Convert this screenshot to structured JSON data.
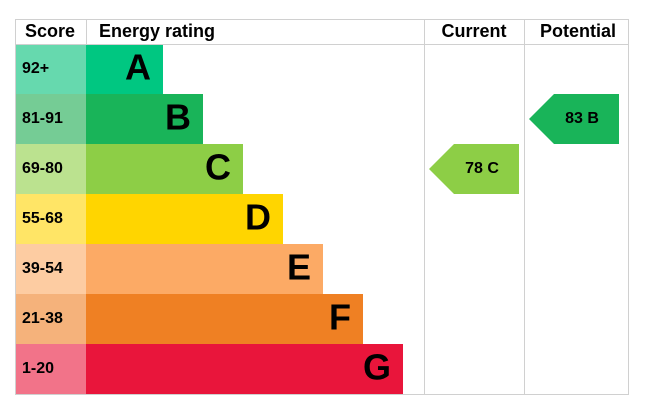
{
  "header": {
    "score": "Score",
    "rating": "Energy rating",
    "current": "Current",
    "potential": "Potential"
  },
  "bands": [
    {
      "score": "92+",
      "letter": "A",
      "color": "#00c781",
      "tint": "#66d9ae"
    },
    {
      "score": "81-91",
      "letter": "B",
      "color": "#19b459",
      "tint": "#75cc95"
    },
    {
      "score": "69-80",
      "letter": "C",
      "color": "#8dce46",
      "tint": "#bbe28f"
    },
    {
      "score": "55-68",
      "letter": "D",
      "color": "#ffd500",
      "tint": "#ffe566"
    },
    {
      "score": "39-54",
      "letter": "E",
      "color": "#fcaa65",
      "tint": "#fdcca2"
    },
    {
      "score": "21-38",
      "letter": "F",
      "color": "#ef8023",
      "tint": "#f5b27b"
    },
    {
      "score": "1-20",
      "letter": "G",
      "color": "#e9153b",
      "tint": "#f27389"
    }
  ],
  "current": {
    "label": "78 C",
    "color": "#8dce46"
  },
  "potential": {
    "label": "83 B",
    "color": "#19b459"
  }
}
